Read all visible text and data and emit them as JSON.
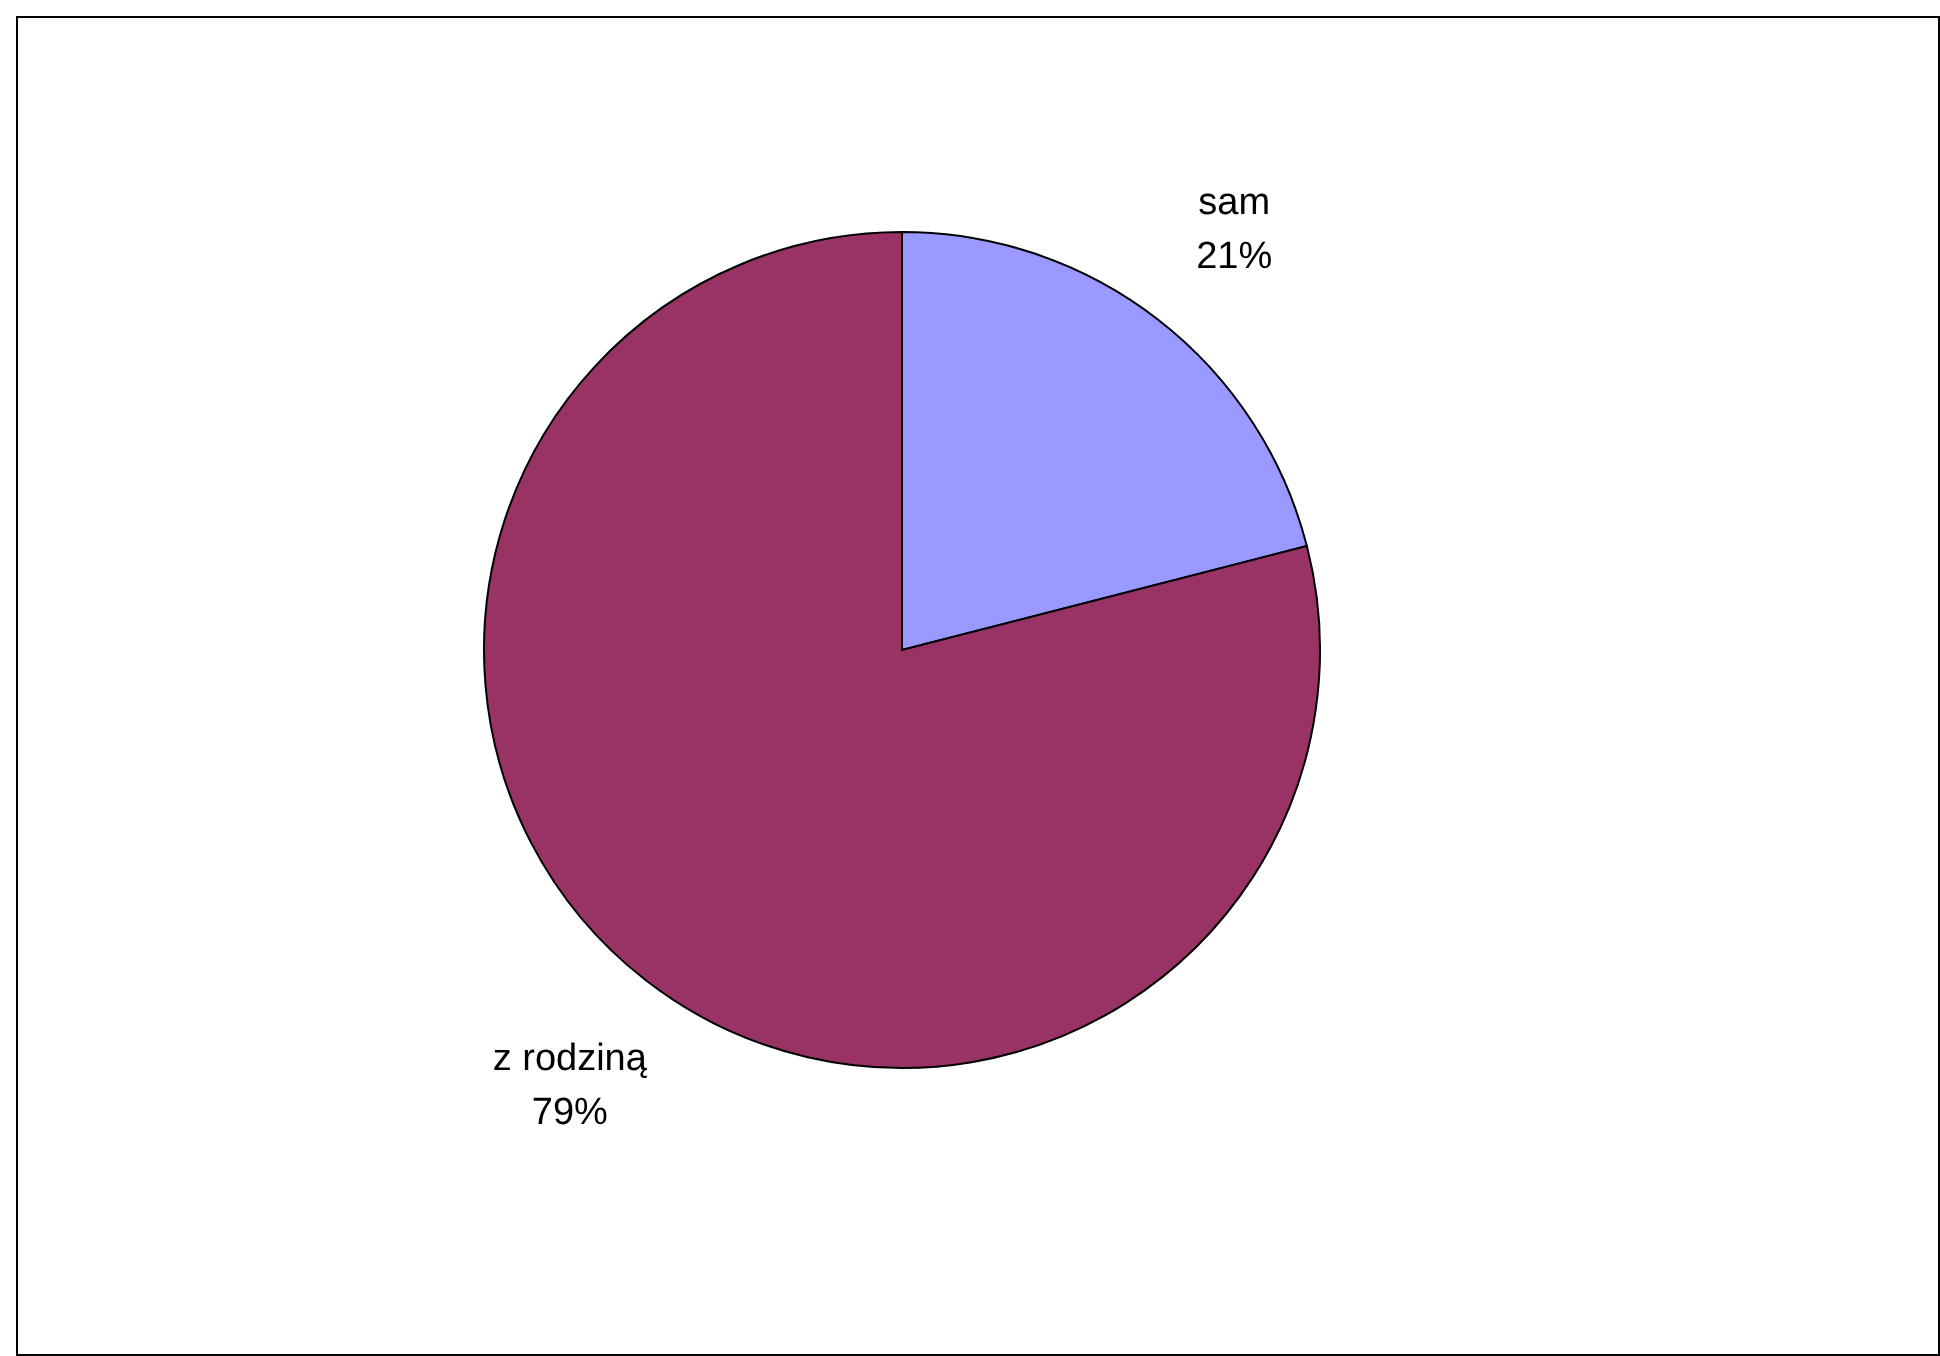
{
  "chart_data": {
    "type": "pie",
    "categories": [
      "sam",
      "z rodziną"
    ],
    "values": [
      21,
      79
    ],
    "colors": [
      "#9999ff",
      "#993366"
    ],
    "value_labels": [
      "21%",
      "79%"
    ]
  }
}
